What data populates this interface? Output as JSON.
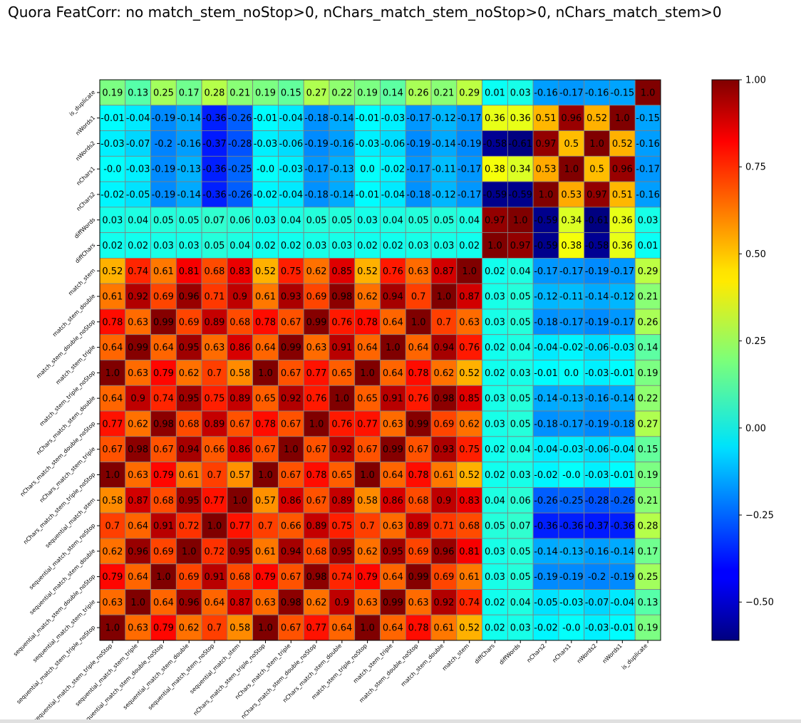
{
  "chart_data": {
    "type": "heatmap",
    "title": "Quora FeatCorr: no match_stem_noStop>0, nChars_match_stem_noStop>0, nChars_match_stem>0",
    "row_labels": [
      "is_duplicate",
      "nWords1",
      "nWords2",
      "nChars1",
      "nChars2",
      "diffWords",
      "diffChars",
      "match_stem",
      "match_stem_double",
      "match_stem_double_noStop",
      "match_stem_triple",
      "match_stem_triple_noStop",
      "nChars_match_stem_double",
      "nChars_match_stem_double_noStop",
      "nChars_match_stem_triple",
      "nChars_match_stem_triple_noStop",
      "sequential_match_stem",
      "sequential_match_stem_noStop",
      "sequential_match_stem_double",
      "sequential_match_stem_double_noStop",
      "sequential_match_stem_triple",
      "sequential_match_stem_triple_noStop"
    ],
    "col_labels": [
      "sequential_match_stem_triple_noStop",
      "sequential_match_stem_triple",
      "sequential_match_stem_double_noStop",
      "sequential_match_stem_double",
      "sequential_match_stem_noStop",
      "sequential_match_stem",
      "nChars_match_stem_triple_noStop",
      "nChars_match_stem_triple",
      "nChars_match_stem_double_noStop",
      "nChars_match_stem_double",
      "match_stem_triple_noStop",
      "match_stem_triple",
      "match_stem_double_noStop",
      "match_stem_double",
      "match_stem",
      "diffChars",
      "diffWords",
      "nChars2",
      "nChars1",
      "nWords2",
      "nWords1",
      "is_duplicate"
    ],
    "values": [
      [
        0.19,
        0.13,
        0.25,
        0.17,
        0.28,
        0.21,
        0.19,
        0.15,
        0.27,
        0.22,
        0.19,
        0.14,
        0.26,
        0.21,
        0.29,
        0.01,
        0.03,
        -0.16,
        -0.17,
        -0.16,
        -0.15,
        1.0
      ],
      [
        -0.01,
        -0.04,
        -0.19,
        -0.14,
        -0.36,
        -0.26,
        -0.01,
        -0.04,
        -0.18,
        -0.14,
        -0.01,
        -0.03,
        -0.17,
        -0.12,
        -0.17,
        0.36,
        0.36,
        0.51,
        0.96,
        0.52,
        1.0,
        -0.15
      ],
      [
        -0.03,
        -0.07,
        -0.2,
        -0.16,
        -0.37,
        -0.28,
        -0.03,
        -0.06,
        -0.19,
        -0.16,
        -0.03,
        -0.06,
        -0.19,
        -0.14,
        -0.19,
        -0.58,
        -0.61,
        0.97,
        0.5,
        1.0,
        0.52,
        -0.16
      ],
      [
        -0.0,
        -0.03,
        -0.19,
        -0.13,
        -0.36,
        -0.25,
        -0.0,
        -0.03,
        -0.17,
        -0.13,
        0.0,
        -0.02,
        -0.17,
        -0.11,
        -0.17,
        0.38,
        0.34,
        0.53,
        1.0,
        0.5,
        0.96,
        -0.17
      ],
      [
        -0.02,
        -0.05,
        -0.19,
        -0.14,
        -0.36,
        -0.26,
        -0.02,
        -0.04,
        -0.18,
        -0.14,
        -0.01,
        -0.04,
        -0.18,
        -0.12,
        -0.17,
        -0.59,
        -0.59,
        1.0,
        0.53,
        0.97,
        0.51,
        -0.16
      ],
      [
        0.03,
        0.04,
        0.05,
        0.05,
        0.07,
        0.06,
        0.03,
        0.04,
        0.05,
        0.05,
        0.03,
        0.04,
        0.05,
        0.05,
        0.04,
        0.97,
        1.0,
        -0.59,
        0.34,
        -0.61,
        0.36,
        0.03
      ],
      [
        0.02,
        0.02,
        0.03,
        0.03,
        0.05,
        0.04,
        0.02,
        0.02,
        0.03,
        0.03,
        0.02,
        0.02,
        0.03,
        0.03,
        0.02,
        1.0,
        0.97,
        -0.59,
        0.38,
        -0.58,
        0.36,
        0.01
      ],
      [
        0.52,
        0.74,
        0.61,
        0.81,
        0.68,
        0.83,
        0.52,
        0.75,
        0.62,
        0.85,
        0.52,
        0.76,
        0.63,
        0.87,
        1.0,
        0.02,
        0.04,
        -0.17,
        -0.17,
        -0.19,
        -0.17,
        0.29
      ],
      [
        0.61,
        0.92,
        0.69,
        0.96,
        0.71,
        0.9,
        0.61,
        0.93,
        0.69,
        0.98,
        0.62,
        0.94,
        0.7,
        1.0,
        0.87,
        0.03,
        0.05,
        -0.12,
        -0.11,
        -0.14,
        -0.12,
        0.21
      ],
      [
        0.78,
        0.63,
        0.99,
        0.69,
        0.89,
        0.68,
        0.78,
        0.67,
        0.99,
        0.76,
        0.78,
        0.64,
        1.0,
        0.7,
        0.63,
        0.03,
        0.05,
        -0.18,
        -0.17,
        -0.19,
        -0.17,
        0.26
      ],
      [
        0.64,
        0.99,
        0.64,
        0.95,
        0.63,
        0.86,
        0.64,
        0.99,
        0.63,
        0.91,
        0.64,
        1.0,
        0.64,
        0.94,
        0.76,
        0.02,
        0.04,
        -0.04,
        -0.02,
        -0.06,
        -0.03,
        0.14
      ],
      [
        1.0,
        0.63,
        0.79,
        0.62,
        0.7,
        0.58,
        1.0,
        0.67,
        0.77,
        0.65,
        1.0,
        0.64,
        0.78,
        0.62,
        0.52,
        0.02,
        0.03,
        -0.01,
        0.0,
        -0.03,
        -0.01,
        0.19
      ],
      [
        0.64,
        0.9,
        0.74,
        0.95,
        0.75,
        0.89,
        0.65,
        0.92,
        0.76,
        1.0,
        0.65,
        0.91,
        0.76,
        0.98,
        0.85,
        0.03,
        0.05,
        -0.14,
        -0.13,
        -0.16,
        -0.14,
        0.22
      ],
      [
        0.77,
        0.62,
        0.98,
        0.68,
        0.89,
        0.67,
        0.78,
        0.67,
        1.0,
        0.76,
        0.77,
        0.63,
        0.99,
        0.69,
        0.62,
        0.03,
        0.05,
        -0.18,
        -0.17,
        -0.19,
        -0.18,
        0.27
      ],
      [
        0.67,
        0.98,
        0.67,
        0.94,
        0.66,
        0.86,
        0.67,
        1.0,
        0.67,
        0.92,
        0.67,
        0.99,
        0.67,
        0.93,
        0.75,
        0.02,
        0.04,
        -0.04,
        -0.03,
        -0.06,
        -0.04,
        0.15
      ],
      [
        1.0,
        0.63,
        0.79,
        0.61,
        0.7,
        0.57,
        1.0,
        0.67,
        0.78,
        0.65,
        1.0,
        0.64,
        0.78,
        0.61,
        0.52,
        0.02,
        0.03,
        -0.02,
        -0.0,
        -0.03,
        -0.01,
        0.19
      ],
      [
        0.58,
        0.87,
        0.68,
        0.95,
        0.77,
        1.0,
        0.57,
        0.86,
        0.67,
        0.89,
        0.58,
        0.86,
        0.68,
        0.9,
        0.83,
        0.04,
        0.06,
        -0.26,
        -0.25,
        -0.28,
        -0.26,
        0.21
      ],
      [
        0.7,
        0.64,
        0.91,
        0.72,
        1.0,
        0.77,
        0.7,
        0.66,
        0.89,
        0.75,
        0.7,
        0.63,
        0.89,
        0.71,
        0.68,
        0.05,
        0.07,
        -0.36,
        -0.36,
        -0.37,
        -0.36,
        0.28
      ],
      [
        0.62,
        0.96,
        0.69,
        1.0,
        0.72,
        0.95,
        0.61,
        0.94,
        0.68,
        0.95,
        0.62,
        0.95,
        0.69,
        0.96,
        0.81,
        0.03,
        0.05,
        -0.14,
        -0.13,
        -0.16,
        -0.14,
        0.17
      ],
      [
        0.79,
        0.64,
        1.0,
        0.69,
        0.91,
        0.68,
        0.79,
        0.67,
        0.98,
        0.74,
        0.79,
        0.64,
        0.99,
        0.69,
        0.61,
        0.03,
        0.05,
        -0.19,
        -0.19,
        -0.2,
        -0.19,
        0.25
      ],
      [
        0.63,
        1.0,
        0.64,
        0.96,
        0.64,
        0.87,
        0.63,
        0.98,
        0.62,
        0.9,
        0.63,
        0.99,
        0.63,
        0.92,
        0.74,
        0.02,
        0.04,
        -0.05,
        -0.03,
        -0.07,
        -0.04,
        0.13
      ],
      [
        1.0,
        0.63,
        0.79,
        0.62,
        0.7,
        0.58,
        1.0,
        0.67,
        0.77,
        0.64,
        1.0,
        0.64,
        0.78,
        0.61,
        0.52,
        0.02,
        0.03,
        -0.02,
        -0.0,
        -0.03,
        -0.01,
        0.19
      ]
    ],
    "vmin": -0.61,
    "vmax": 1.0,
    "colormap": "jet",
    "colorbar_ticks": [
      "1.00",
      "0.75",
      "0.50",
      "0.25",
      "0.00",
      "−0.25",
      "−0.50"
    ],
    "colorbar_tick_values": [
      1.0,
      0.75,
      0.5,
      0.25,
      0.0,
      -0.25,
      -0.5
    ],
    "grid_color": "#808080"
  }
}
